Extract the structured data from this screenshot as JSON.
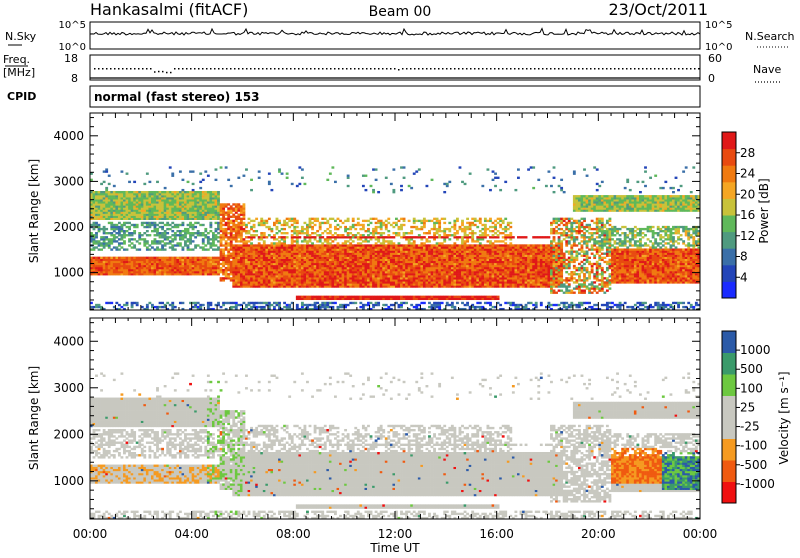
{
  "header": {
    "station": "Hankasalmi (fitACF)",
    "beam": "Beam 00",
    "date": "23/Oct/2011"
  },
  "panels": {
    "nsky": {
      "label": "N.Sky",
      "left_ticks": [
        "10^5",
        "10^0"
      ],
      "right_ticks": [
        "10^5",
        "10^0"
      ],
      "right_label": "N.Search"
    },
    "freq": {
      "label_lines": [
        "Freq.",
        "[MHz]"
      ],
      "left_ticks": [
        "18",
        "8"
      ],
      "right_ticks": [
        "60",
        "0"
      ],
      "right_label": "Nave"
    },
    "cpid": {
      "label": "CPID",
      "mode_text": "normal (fast stereo) 153"
    }
  },
  "colors": {
    "power": [
      "#1a2bff",
      "#2345b8",
      "#3a6fa8",
      "#4f9a7f",
      "#5fb85a",
      "#c8c23a",
      "#f5a623",
      "#f07a10",
      "#e84a10",
      "#e01818"
    ],
    "velocity": [
      "#f01010",
      "#f05a10",
      "#f59a20",
      "#c8c8c0",
      "#c8c8c0",
      "#6dc840",
      "#3a9a6a",
      "#2b5aa8"
    ],
    "ground_scatter": "#c8c8c0"
  },
  "chart_data": [
    {
      "type": "heatmap",
      "quantity": "power",
      "title": "",
      "xlabel": "Time UT",
      "ylabel": "Slant Range [km]",
      "x_ticks": [
        "00:00",
        "04:00",
        "08:00",
        "12:00",
        "16:00",
        "20:00",
        "00:00"
      ],
      "xlim_hours": [
        0,
        24
      ],
      "y_ticks": [
        1000,
        2000,
        3000,
        4000
      ],
      "ylim": [
        180,
        4500
      ],
      "colorbar": {
        "label": "Power [dB]",
        "ticks": [
          4,
          8,
          12,
          16,
          20,
          24,
          28
        ],
        "range": [
          0,
          32
        ]
      },
      "features": [
        {
          "name": "dense band",
          "t_start": 5.5,
          "t_end": 18.5,
          "r_min": 650,
          "r_max": 1600,
          "level_db": 28
        },
        {
          "name": "upper band early",
          "t_start": 0,
          "t_end": 5,
          "r_min": 2200,
          "r_max": 2700,
          "level_db": 16
        },
        {
          "name": "near-range low echo",
          "t_start": 8,
          "t_end": 16,
          "r_min": 400,
          "r_max": 460,
          "level_db": 30
        },
        {
          "name": "late evening band",
          "t_start": 20,
          "t_end": 24,
          "r_min": 750,
          "r_max": 1500,
          "level_db": 26
        }
      ]
    },
    {
      "type": "heatmap",
      "quantity": "velocity",
      "title": "",
      "xlabel": "Time UT",
      "ylabel": "Slant Range [km]",
      "x_ticks": [
        "00:00",
        "04:00",
        "08:00",
        "12:00",
        "16:00",
        "20:00",
        "00:00"
      ],
      "xlim_hours": [
        0,
        24
      ],
      "y_ticks": [
        1000,
        2000,
        3000,
        4000
      ],
      "ylim": [
        180,
        4500
      ],
      "colorbar": {
        "label": "Velocity [m s⁻¹]",
        "ticks": [
          1000,
          500,
          100,
          25,
          -25,
          -100,
          -500,
          -1000
        ]
      },
      "features": [
        {
          "name": "ground scatter band",
          "t_start": 5.5,
          "t_end": 18.5,
          "r_min": 700,
          "r_max": 1600,
          "velocity": 0
        },
        {
          "name": "negative velocity patch",
          "t_start": 20.5,
          "t_end": 22.5,
          "r_min": 900,
          "r_max": 1700,
          "velocity": -300
        },
        {
          "name": "positive velocity patch",
          "t_start": 22.5,
          "t_end": 24,
          "r_min": 800,
          "r_max": 1600,
          "velocity": 300
        }
      ]
    }
  ]
}
